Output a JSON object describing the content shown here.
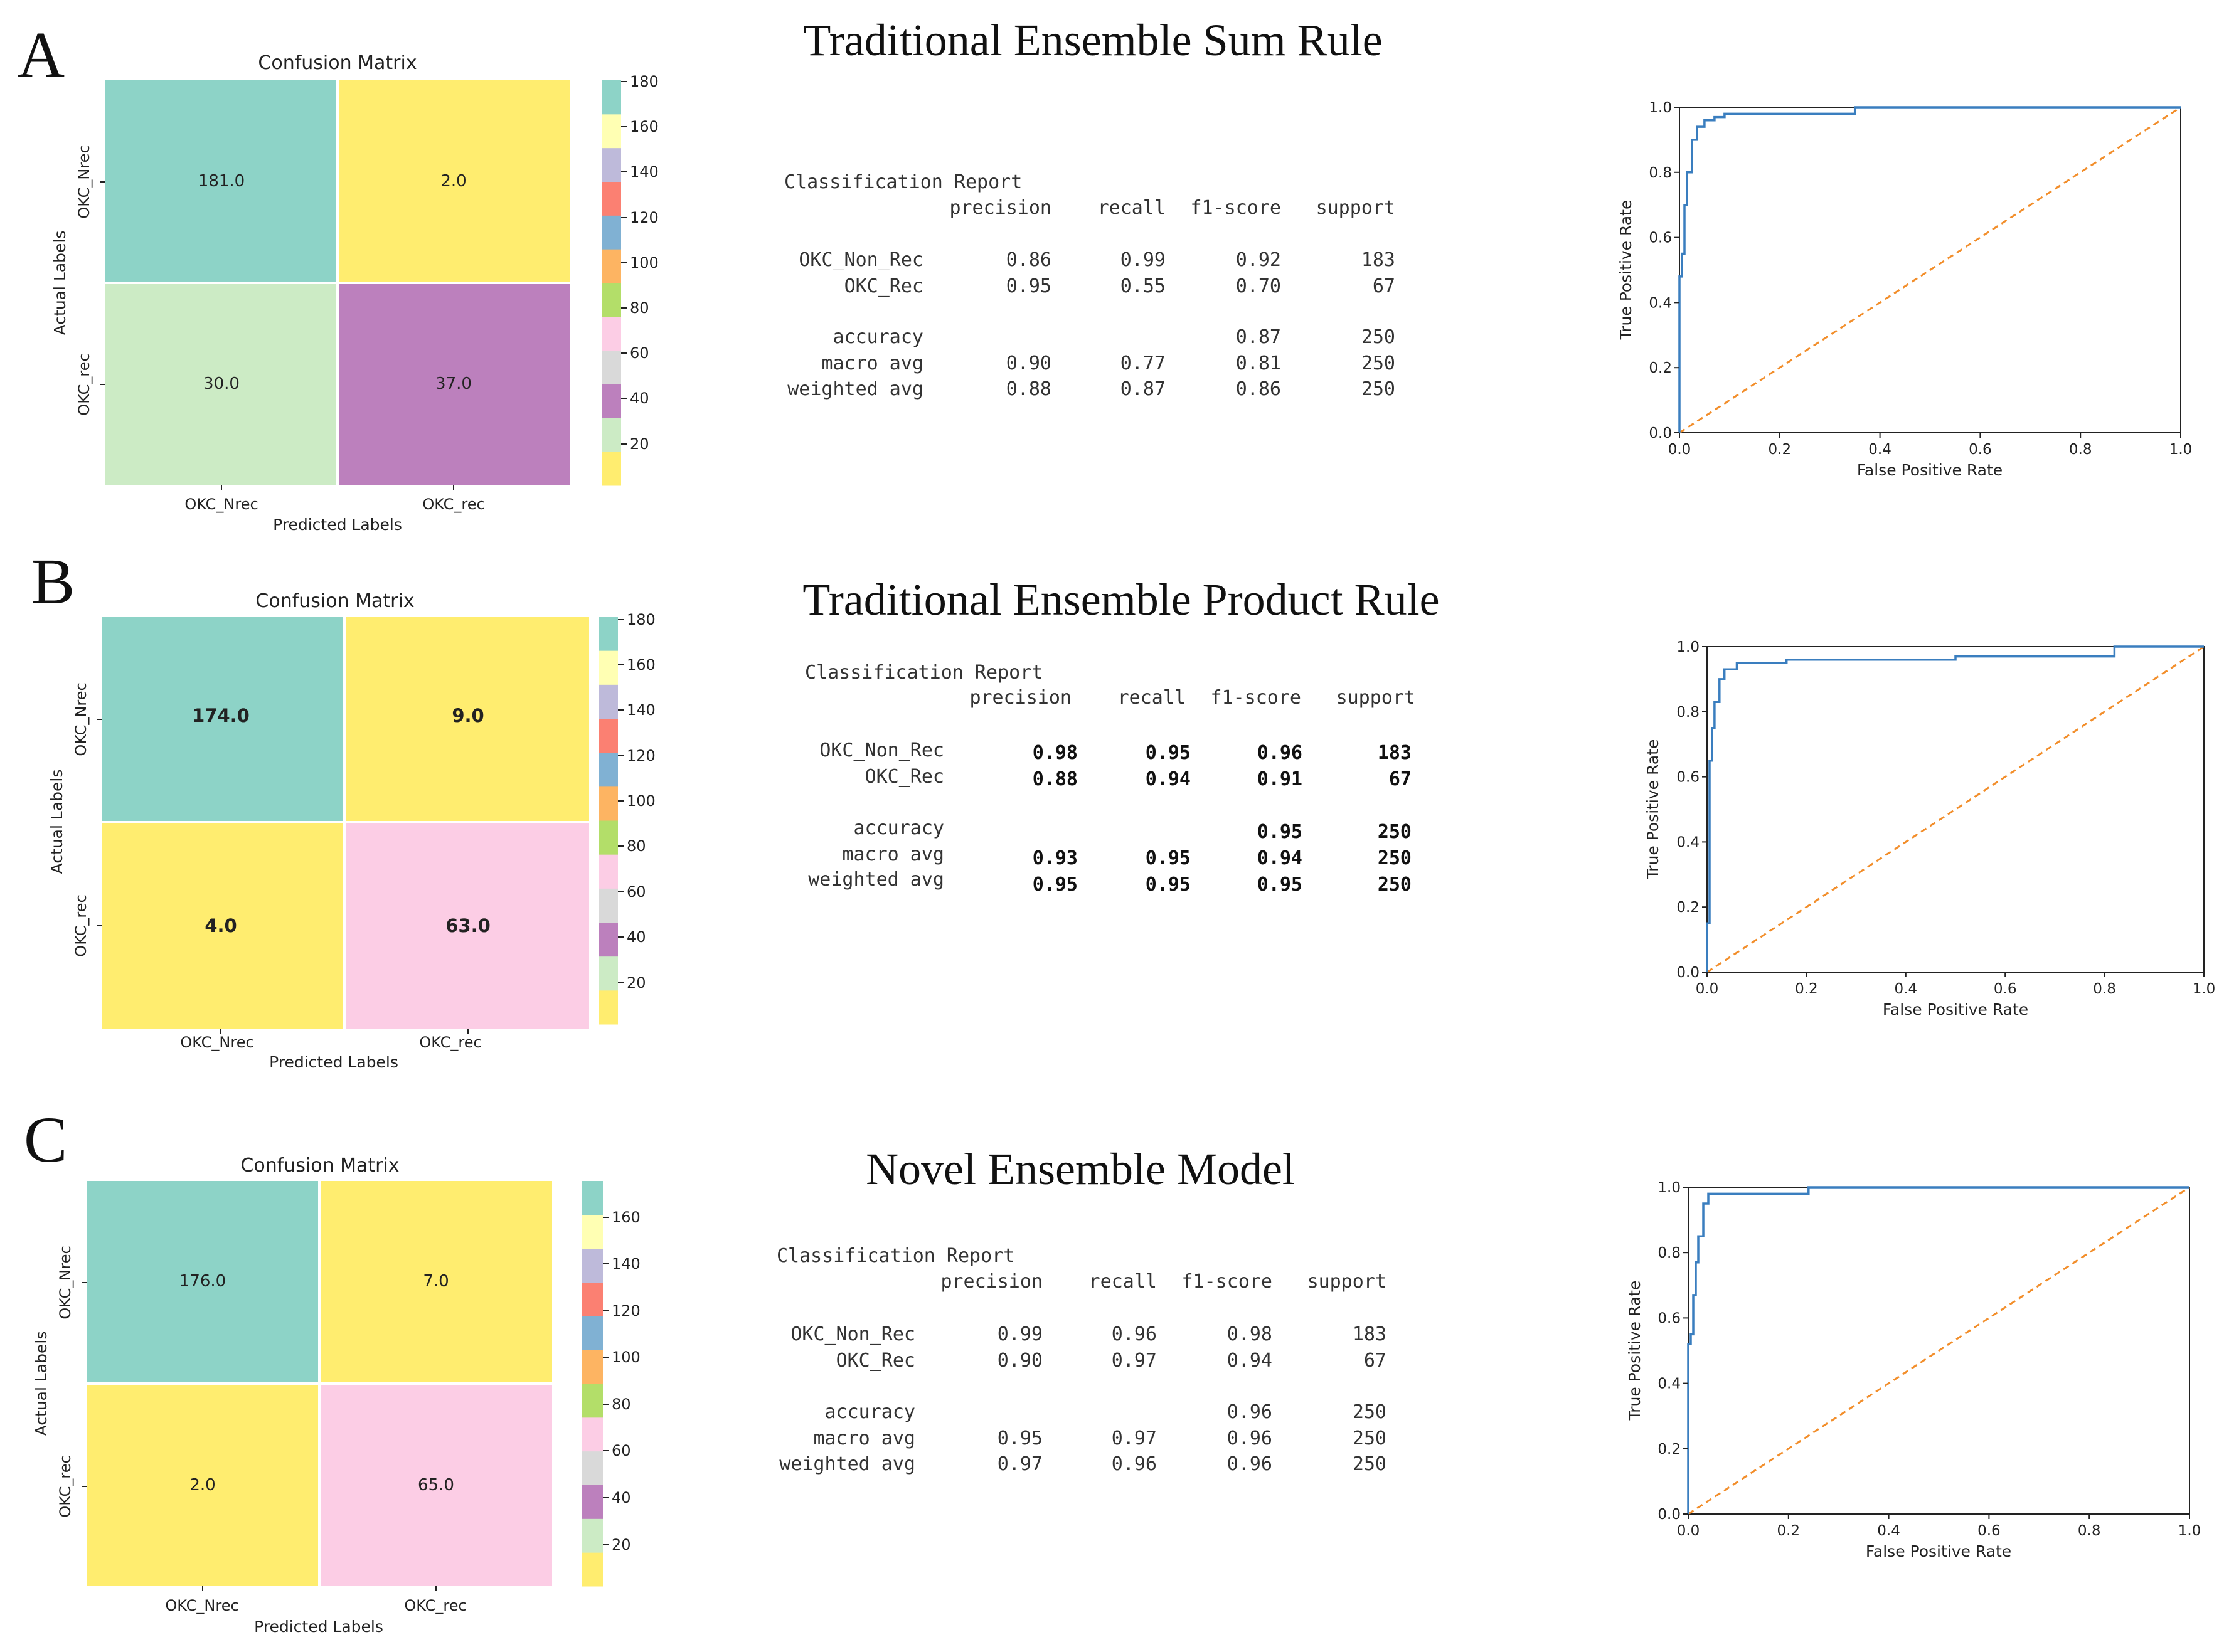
{
  "panels": [
    {
      "letter": "A",
      "title": "Traditional Ensemble Sum Rule",
      "chart_data": {
        "type": "heatmap",
        "title": "Confusion Matrix",
        "xlabel": "Predicted Labels",
        "ylabel": "Actual Labels",
        "x_categories": [
          "OKC_Nrec",
          "OKC_rec"
        ],
        "y_categories": [
          "OKC_Nrec",
          "OKC_rec"
        ],
        "matrix": [
          [
            "181.0",
            "2.0"
          ],
          [
            "30.0",
            "37.0"
          ]
        ],
        "cell_colors": [
          [
            "#8dd3c7",
            "#ffed6f"
          ],
          [
            "#ccebc5",
            "#bc80bd"
          ]
        ],
        "colorbar_ticks": [
          "180",
          "160",
          "140",
          "120",
          "100",
          "80",
          "60",
          "40",
          "20"
        ],
        "colorbar_range": [
          2,
          181
        ]
      },
      "report": {
        "heading": "Classification Report",
        "columns": [
          "precision",
          "recall",
          "f1-score",
          "support"
        ],
        "rows": [
          {
            "label": "OKC_Non_Rec",
            "values": [
              "0.86",
              "0.99",
              "0.92",
              "183"
            ]
          },
          {
            "label": "OKC_Rec",
            "values": [
              "0.95",
              "0.55",
              "0.70",
              "67"
            ]
          },
          {
            "label": "accuracy",
            "values": [
              "",
              "",
              "0.87",
              "250"
            ]
          },
          {
            "label": "macro avg",
            "values": [
              "0.90",
              "0.77",
              "0.81",
              "250"
            ]
          },
          {
            "label": "weighted avg",
            "values": [
              "0.88",
              "0.87",
              "0.86",
              "250"
            ]
          }
        ]
      },
      "roc": {
        "type": "line",
        "xlabel": "False Positive Rate",
        "ylabel": "True Positive Rate",
        "xlim": [
          0,
          1
        ],
        "ylim": [
          0,
          1
        ],
        "ticks": [
          "0.0",
          "0.2",
          "0.4",
          "0.6",
          "0.8",
          "1.0"
        ],
        "series": [
          {
            "name": "ROC",
            "color": "#3a7ebf",
            "dashed": false,
            "x": [
              0,
              0,
              0.005,
              0.005,
              0.01,
              0.01,
              0.015,
              0.015,
              0.025,
              0.025,
              0.035,
              0.035,
              0.05,
              0.05,
              0.07,
              0.07,
              0.09,
              0.09,
              0.35,
              0.35,
              1.0
            ],
            "y": [
              0,
              0.48,
              0.48,
              0.55,
              0.55,
              0.7,
              0.7,
              0.8,
              0.8,
              0.9,
              0.9,
              0.94,
              0.94,
              0.96,
              0.96,
              0.97,
              0.97,
              0.98,
              0.98,
              1.0,
              1.0
            ]
          },
          {
            "name": "chance",
            "color": "#f28e2b",
            "dashed": true,
            "x": [
              0,
              1
            ],
            "y": [
              0,
              1
            ]
          }
        ]
      }
    },
    {
      "letter": "B",
      "title": "Traditional Ensemble Product Rule",
      "chart_data": {
        "type": "heatmap",
        "title": "Confusion Matrix",
        "xlabel": "Predicted Labels",
        "ylabel": "Actual Labels",
        "x_categories": [
          "OKC_Nrec",
          "OKC_rec"
        ],
        "y_categories": [
          "OKC_Nrec",
          "OKC_rec"
        ],
        "matrix": [
          [
            "174.0",
            "9.0"
          ],
          [
            "4.0",
            "63.0"
          ]
        ],
        "cell_colors": [
          [
            "#8dd3c7",
            "#ffed6f"
          ],
          [
            "#ffed6f",
            "#fccde5"
          ]
        ],
        "colorbar_ticks": [
          "180",
          "160",
          "140",
          "120",
          "100",
          "80",
          "60",
          "40",
          "20"
        ],
        "colorbar_range": [
          4,
          174
        ]
      },
      "report": {
        "heading": "Classification Report",
        "columns": [
          "precision",
          "recall",
          "f1-score",
          "support"
        ],
        "rows": [
          {
            "label": "OKC_Non_Rec",
            "values": [
              "0.98",
              "0.95",
              "0.96",
              "183"
            ]
          },
          {
            "label": "OKC_Rec",
            "values": [
              "0.88",
              "0.94",
              "0.91",
              "67"
            ]
          },
          {
            "label": "accuracy",
            "values": [
              "",
              "",
              "0.95",
              "250"
            ]
          },
          {
            "label": "macro avg",
            "values": [
              "0.93",
              "0.95",
              "0.94",
              "250"
            ]
          },
          {
            "label": "weighted avg",
            "values": [
              "0.95",
              "0.95",
              "0.95",
              "250"
            ]
          }
        ]
      },
      "roc": {
        "type": "line",
        "xlabel": "False Positive Rate",
        "ylabel": "True Positive Rate",
        "xlim": [
          0,
          1
        ],
        "ylim": [
          0,
          1
        ],
        "ticks": [
          "0.0",
          "0.2",
          "0.4",
          "0.6",
          "0.8",
          "1.0"
        ],
        "series": [
          {
            "name": "ROC",
            "color": "#3a7ebf",
            "dashed": false,
            "x": [
              0,
              0,
              0.005,
              0.005,
              0.01,
              0.01,
              0.015,
              0.015,
              0.025,
              0.025,
              0.035,
              0.035,
              0.06,
              0.06,
              0.16,
              0.16,
              0.5,
              0.5,
              0.82,
              0.82,
              1.0
            ],
            "y": [
              0,
              0.15,
              0.15,
              0.65,
              0.65,
              0.75,
              0.75,
              0.83,
              0.83,
              0.9,
              0.9,
              0.93,
              0.93,
              0.95,
              0.95,
              0.96,
              0.96,
              0.97,
              0.97,
              1.0,
              1.0
            ]
          },
          {
            "name": "chance",
            "color": "#f28e2b",
            "dashed": true,
            "x": [
              0,
              1
            ],
            "y": [
              0,
              1
            ]
          }
        ]
      }
    },
    {
      "letter": "C",
      "title": "Novel Ensemble Model",
      "chart_data": {
        "type": "heatmap",
        "title": "Confusion Matrix",
        "xlabel": "Predicted Labels",
        "ylabel": "Actual Labels",
        "x_categories": [
          "OKC_Nrec",
          "OKC_rec"
        ],
        "y_categories": [
          "OKC_Nrec",
          "OKC_rec"
        ],
        "matrix": [
          [
            "176.0",
            "7.0"
          ],
          [
            "2.0",
            "65.0"
          ]
        ],
        "cell_colors": [
          [
            "#8dd3c7",
            "#ffed6f"
          ],
          [
            "#ffed6f",
            "#fccde5"
          ]
        ],
        "colorbar_ticks": [
          "160",
          "140",
          "120",
          "100",
          "80",
          "60",
          "40",
          "20"
        ],
        "colorbar_range": [
          2,
          176
        ]
      },
      "report": {
        "heading": "Classification Report",
        "columns": [
          "precision",
          "recall",
          "f1-score",
          "support"
        ],
        "rows": [
          {
            "label": "OKC_Non_Rec",
            "values": [
              "0.99",
              "0.96",
              "0.98",
              "183"
            ]
          },
          {
            "label": "OKC_Rec",
            "values": [
              "0.90",
              "0.97",
              "0.94",
              "67"
            ]
          },
          {
            "label": "accuracy",
            "values": [
              "",
              "",
              "0.96",
              "250"
            ]
          },
          {
            "label": "macro avg",
            "values": [
              "0.95",
              "0.97",
              "0.96",
              "250"
            ]
          },
          {
            "label": "weighted avg",
            "values": [
              "0.97",
              "0.96",
              "0.96",
              "250"
            ]
          }
        ]
      },
      "roc": {
        "type": "line",
        "xlabel": "False Positive Rate",
        "ylabel": "True Positive Rate",
        "xlim": [
          0,
          1
        ],
        "ylim": [
          0,
          1
        ],
        "ticks": [
          "0.0",
          "0.2",
          "0.4",
          "0.6",
          "0.8",
          "1.0"
        ],
        "series": [
          {
            "name": "ROC",
            "color": "#3a7ebf",
            "dashed": false,
            "x": [
              0,
              0,
              0.005,
              0.005,
              0.01,
              0.01,
              0.015,
              0.015,
              0.02,
              0.02,
              0.03,
              0.03,
              0.04,
              0.04,
              0.24,
              0.24,
              1.0
            ],
            "y": [
              0,
              0.52,
              0.52,
              0.55,
              0.55,
              0.67,
              0.67,
              0.77,
              0.77,
              0.85,
              0.85,
              0.95,
              0.95,
              0.98,
              0.98,
              1.0,
              1.0
            ]
          },
          {
            "name": "chance",
            "color": "#f28e2b",
            "dashed": true,
            "x": [
              0,
              1
            ],
            "y": [
              0,
              1
            ]
          }
        ]
      }
    }
  ],
  "colormap": [
    "#ffed6f",
    "#ccebc5",
    "#bc80bd",
    "#d9d9d9",
    "#fccde5",
    "#b3de69",
    "#fdb462",
    "#80b1d3",
    "#fb8072",
    "#bebada",
    "#ffffb3",
    "#8dd3c7"
  ]
}
